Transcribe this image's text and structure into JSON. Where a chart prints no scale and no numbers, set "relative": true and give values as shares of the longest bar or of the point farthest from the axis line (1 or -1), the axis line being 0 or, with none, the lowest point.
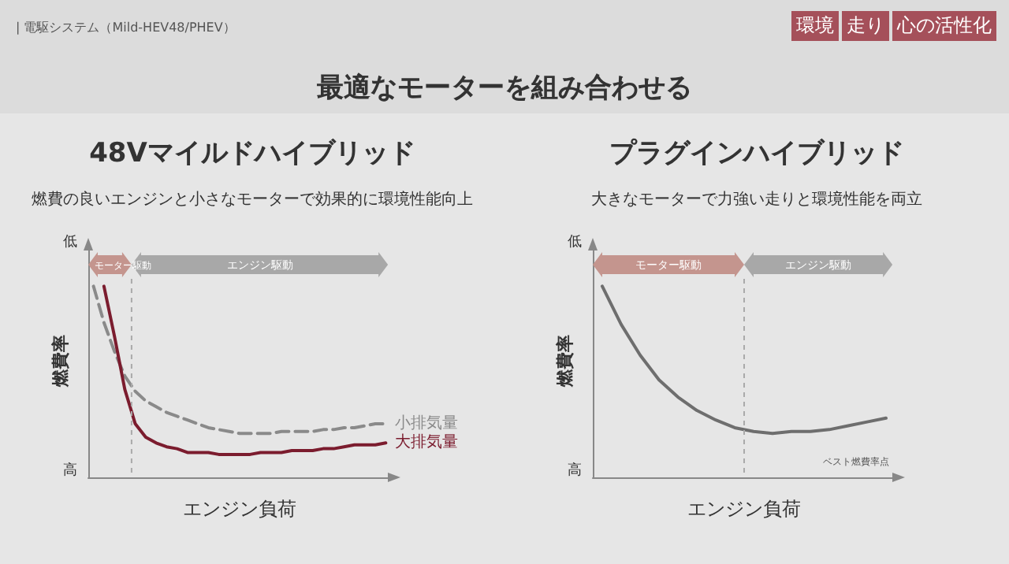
{
  "chart_data": [
    {
      "type": "other",
      "title": "最適なモーターを組み合わせる",
      "annotations": [
        "| 電駆システム（Mild-HEV48/PHEV）",
        "環境",
        "走り",
        "心の活性化"
      ]
    },
    {
      "type": "line",
      "title": "48Vマイルドハイブリッド",
      "subtitle": "燃費の良いエンジンと小さなモーターで効果的に環境性能向上",
      "xlabel": "エンジン負荷",
      "ylabel": "燃費率",
      "annotations": [
        "低",
        "高",
        "モーター駆動",
        "エンジン駆動"
      ],
      "relative": true,
      "marker": "none",
      "categories": [
        null,
        null,
        null,
        null,
        null,
        null,
        null,
        null,
        null,
        null,
        null,
        null,
        null,
        null,
        null,
        null,
        null,
        null,
        null,
        null,
        null,
        null,
        null,
        null,
        null,
        null,
        null,
        null,
        null
      ],
      "series": [
        {
          "name": "小排気量",
          "color": "#8a8a8a",
          "line_style": "dashed",
          "values": [
            1,
            0.81,
            0.66,
            0.53,
            0.45,
            0.4,
            0.37,
            0.34,
            0.32,
            0.3,
            0.28,
            0.26,
            0.25,
            0.24,
            0.23,
            0.23,
            0.23,
            0.23,
            0.24,
            0.24,
            0.24,
            0.24,
            0.25,
            0.25,
            0.26,
            0.26,
            0.27,
            0.28,
            0.28
          ]
        },
        {
          "name": "大排気量",
          "color": "#7b1c2e",
          "line_style": "solid",
          "values": [
            null,
            1,
            0.74,
            0.46,
            0.28,
            0.21,
            0.18,
            0.16,
            0.15,
            0.13,
            0.13,
            0.13,
            0.12,
            0.12,
            0.12,
            0.12,
            0.13,
            0.13,
            0.13,
            0.14,
            0.14,
            0.14,
            0.15,
            0.15,
            0.16,
            0.17,
            0.17,
            0.17,
            0.18
          ]
        }
      ]
    },
    {
      "type": "line",
      "title": "プラグインハイブリッド",
      "subtitle": "大きなモーターで力強い走りと環境性能を両立",
      "xlabel": "エンジン負荷",
      "ylabel": "燃費率",
      "annotations": [
        "低",
        "高",
        "モーター駆動",
        "エンジン駆動",
        "ベスト燃費率点"
      ],
      "relative": true,
      "marker": "none",
      "categories": [
        null,
        null,
        null,
        null,
        null,
        null,
        null,
        null,
        null,
        null,
        null,
        null,
        null,
        null,
        null,
        null
      ],
      "series": [
        {
          "color": "#6e6e6e",
          "line_style": "solid",
          "values": [
            1,
            0.8,
            0.64,
            0.51,
            0.42,
            0.35,
            0.3,
            0.26,
            0.24,
            0.23,
            0.24,
            0.24,
            0.25,
            0.27,
            0.29,
            0.31
          ]
        }
      ]
    }
  ]
}
